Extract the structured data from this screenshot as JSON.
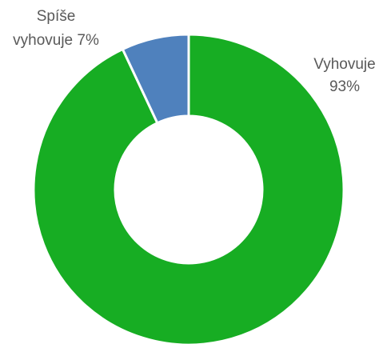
{
  "chart_data": {
    "type": "pie",
    "variant": "donut",
    "categories": [
      "Vyhovuje",
      "Spíše vyhovuje"
    ],
    "values": [
      93,
      7
    ],
    "colors": [
      "#17ad23",
      "#4f81bd"
    ],
    "data_labels": [
      {
        "line1": "Vyhovuje",
        "line2": "93%"
      },
      {
        "line1": "Spíše",
        "line2": "vyhovuje 7%"
      }
    ],
    "legend": "none"
  }
}
